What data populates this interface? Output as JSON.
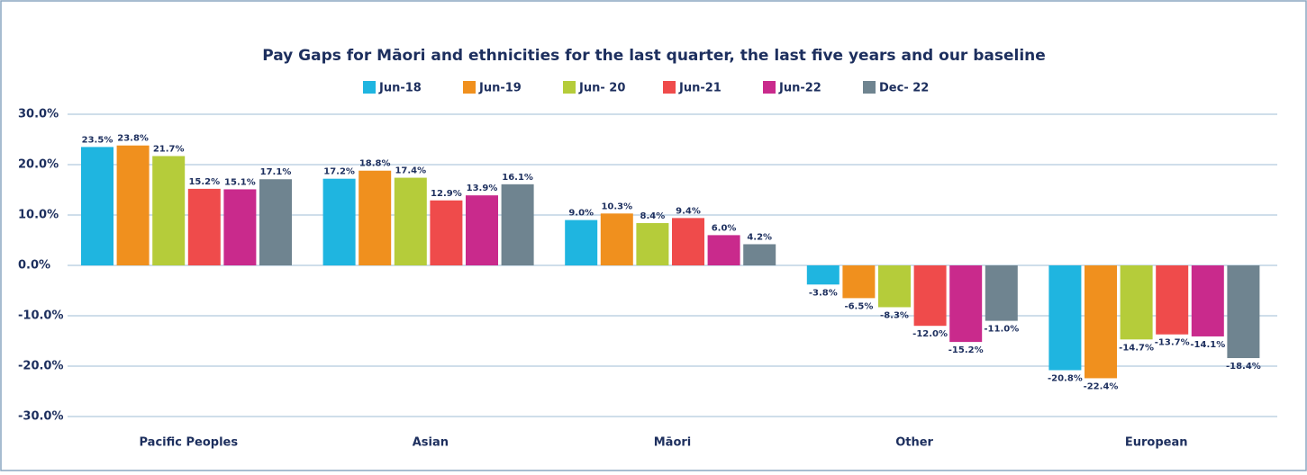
{
  "chart_data": {
    "type": "bar",
    "title": "Pay Gaps for Māori and ethnicities for the last quarter, the last five years and our baseline",
    "categories": [
      "Pacific Peoples",
      "Asian",
      "Māori",
      "Other",
      "European"
    ],
    "series": [
      {
        "name": "Jun-18",
        "color": "#1fb5e0",
        "values": [
          23.5,
          17.2,
          9.0,
          -3.8,
          -20.8
        ],
        "value_labels": [
          "23.5%",
          "17.2%",
          "9.0%",
          "-3.8%",
          "-20.8%"
        ]
      },
      {
        "name": "Jun-19",
        "color": "#f0901e",
        "values": [
          23.8,
          18.8,
          10.3,
          -6.5,
          -22.4
        ],
        "value_labels": [
          "23.8%",
          "18.8%",
          "10.3%",
          "-6.5%",
          "-22.4%"
        ]
      },
      {
        "name": "Jun- 20",
        "color": "#b5cc3a",
        "values": [
          21.7,
          17.4,
          8.4,
          -8.3,
          -14.7
        ],
        "value_labels": [
          "21.7%",
          "17.4%",
          "8.4%",
          "-8.3%",
          "-14.7%"
        ]
      },
      {
        "name": "Jun-21",
        "color": "#ef4b4b",
        "values": [
          15.2,
          12.9,
          9.4,
          -12.0,
          -13.7
        ],
        "value_labels": [
          "15.2%",
          "12.9%",
          "9.4%",
          "-12.0%",
          "-13.7%"
        ]
      },
      {
        "name": "Jun-22",
        "color": "#c92a8c",
        "values": [
          15.1,
          13.9,
          6.0,
          -15.2,
          -14.1
        ],
        "value_labels": [
          "15.1%",
          "13.9%",
          "6.0%",
          "-15.2%",
          "-14.1%"
        ]
      },
      {
        "name": "Dec- 22",
        "color": "#6f8490",
        "values": [
          17.1,
          16.1,
          4.2,
          -11.0,
          -18.4
        ],
        "value_labels": [
          "17.1%",
          "16.1%",
          "4.2%",
          "-11.0%",
          "-18.4%"
        ]
      }
    ],
    "ylim": [
      -30,
      30
    ],
    "yticks": [
      {
        "value": -30,
        "label": "-30.0%"
      },
      {
        "value": -20,
        "label": "-20.0%"
      },
      {
        "value": -10,
        "label": "-10.0%"
      },
      {
        "value": 0,
        "label": "0.0%"
      },
      {
        "value": 10,
        "label": "10.0%"
      },
      {
        "value": 20,
        "label": "20.0%"
      },
      {
        "value": 30,
        "label": "30.0%"
      }
    ],
    "grid": true,
    "legend": "top"
  }
}
